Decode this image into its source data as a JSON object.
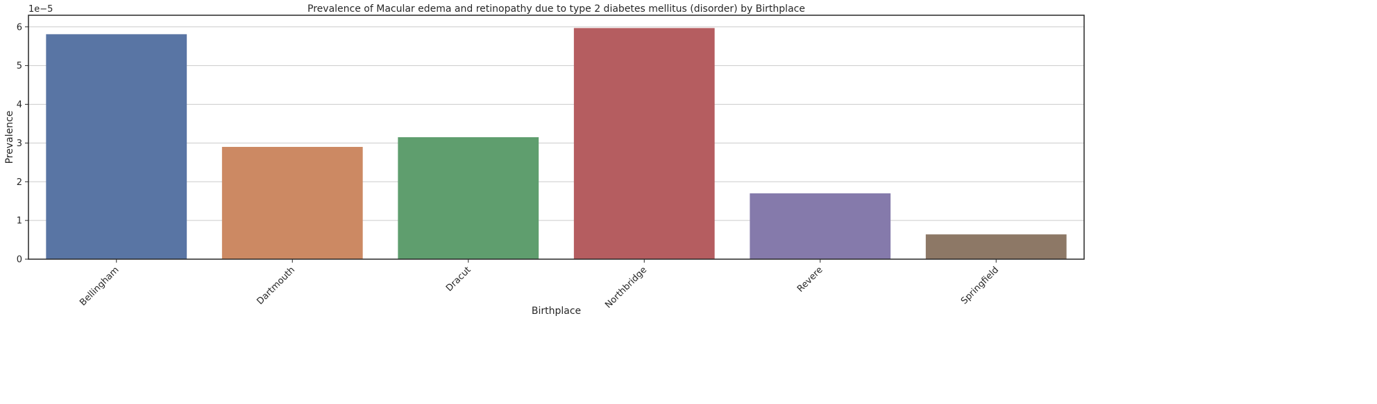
{
  "chart_data": {
    "type": "bar",
    "title": "Prevalence of Macular edema and retinopathy due to type 2 diabetes mellitus (disorder) by Birthplace",
    "xlabel": "Birthplace",
    "ylabel": "Prevalence",
    "y_offset_label": "1e−5",
    "y_scale_exponent": -5,
    "ylim": [
      0,
      6.3
    ],
    "yticks": [
      0,
      1,
      2,
      3,
      4,
      5,
      6
    ],
    "ytick_labels": [
      "0",
      "1",
      "2",
      "3",
      "4",
      "5",
      "6"
    ],
    "categories": [
      "Bellingham",
      "Dartmouth",
      "Dracut",
      "Northbridge",
      "Revere",
      "Springfield"
    ],
    "values": [
      5.81,
      2.9,
      3.15,
      5.97,
      1.7,
      0.64
    ],
    "colors": [
      "#5975a4",
      "#cc8963",
      "#5f9e6e",
      "#b55d60",
      "#857aab",
      "#8d7866"
    ],
    "grid": "y",
    "legend": "none"
  }
}
